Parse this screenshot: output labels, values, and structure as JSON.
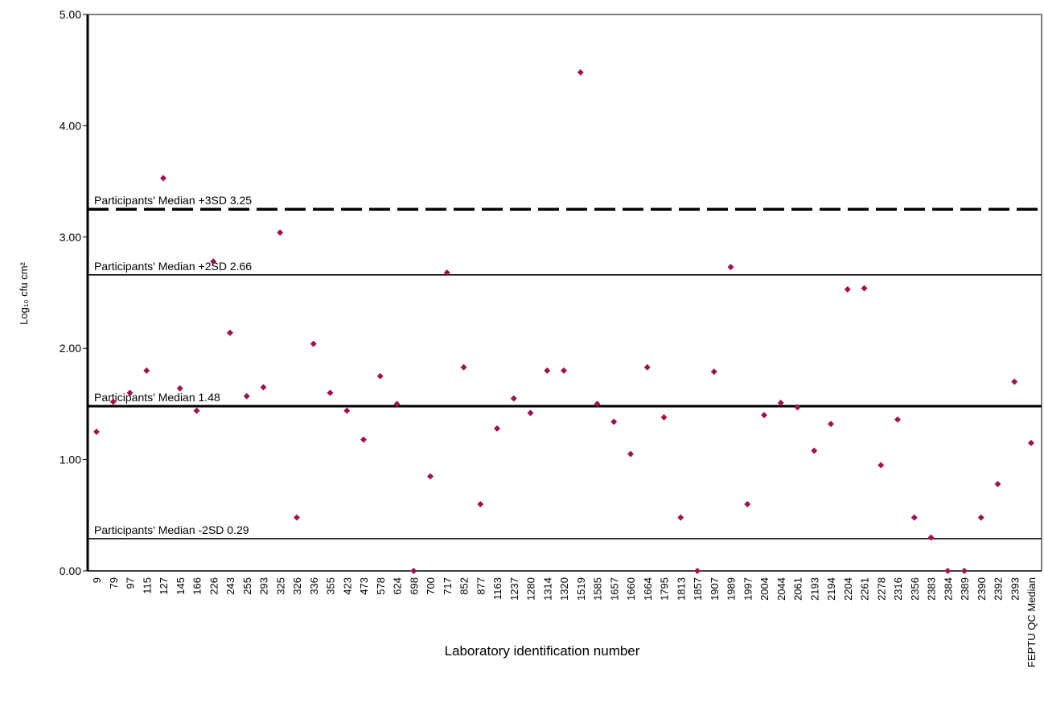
{
  "chart_data": {
    "type": "scatter",
    "xlabel": "Laboratory identification number",
    "ylabel": "Log₁₀ cfu cm²",
    "ylim": [
      0,
      5
    ],
    "yticks": [
      "0.00",
      "1.00",
      "2.00",
      "3.00",
      "4.00",
      "5.00"
    ],
    "grid": false,
    "marker_color": "#a0124e",
    "categories": [
      "9",
      "79",
      "97",
      "115",
      "127",
      "145",
      "166",
      "226",
      "243",
      "255",
      "293",
      "325",
      "326",
      "336",
      "355",
      "423",
      "473",
      "578",
      "624",
      "698",
      "700",
      "717",
      "852",
      "877",
      "1163",
      "1237",
      "1280",
      "1314",
      "1320",
      "1519",
      "1585",
      "1657",
      "1660",
      "1664",
      "1795",
      "1813",
      "1857",
      "1907",
      "1989",
      "1997",
      "2004",
      "2044",
      "2061",
      "2193",
      "2194",
      "2204",
      "2261",
      "2278",
      "2316",
      "2356",
      "2383",
      "2384",
      "2389",
      "2390",
      "2392",
      "2393",
      "FEPTU QC Median"
    ],
    "values": [
      1.25,
      1.52,
      1.6,
      1.8,
      3.53,
      1.64,
      1.44,
      2.78,
      2.14,
      1.57,
      1.65,
      3.04,
      0.48,
      2.04,
      1.6,
      1.44,
      1.18,
      1.75,
      1.5,
      0.0,
      0.85,
      2.68,
      1.83,
      0.6,
      1.28,
      1.55,
      1.42,
      1.8,
      1.8,
      4.48,
      1.5,
      1.34,
      1.05,
      1.83,
      1.38,
      0.48,
      0.0,
      1.79,
      2.73,
      0.6,
      1.4,
      1.51,
      1.47,
      1.08,
      1.32,
      2.53,
      2.54,
      0.95,
      1.36,
      0.48,
      0.3,
      0.0,
      0.0,
      0.48,
      0.78,
      1.7,
      1.15
    ],
    "reference_lines": [
      {
        "label": "Participants' Median +3SD 3.25",
        "value": 3.25,
        "style": "dashed"
      },
      {
        "label": "Participants' Median +2SD 2.66",
        "value": 2.66,
        "style": "solid"
      },
      {
        "label": "Participants' Median 1.48",
        "value": 1.48,
        "style": "thick"
      },
      {
        "label": "Participants' Median -2SD 0.29",
        "value": 0.29,
        "style": "solid"
      }
    ]
  }
}
